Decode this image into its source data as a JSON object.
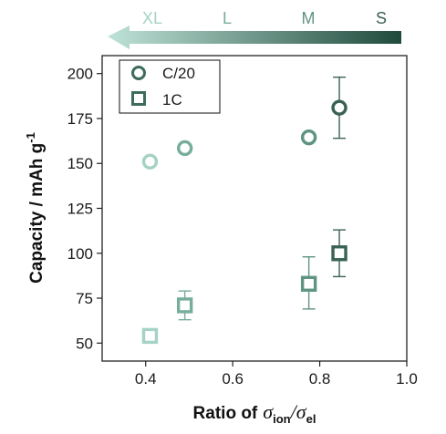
{
  "chart_data": {
    "type": "scatter",
    "xlabel": {
      "prefix": "Ratio of",
      "numerator_symbol": "σ",
      "numerator_sub": "ion",
      "slash": "/",
      "denominator_symbol": "σ",
      "denominator_sub": "el"
    },
    "ylabel": "Capacity / mAh g",
    "ylabel_superscript": "-1",
    "xlim": [
      0.3,
      1.0
    ],
    "ylim": [
      40,
      210
    ],
    "x_ticks": [
      0.4,
      0.6,
      0.8,
      1.0
    ],
    "x_tick_labels": [
      "0.4",
      "0.6",
      "0.8",
      "1.0"
    ],
    "y_ticks": [
      50,
      75,
      100,
      125,
      150,
      175,
      200
    ],
    "y_tick_labels": [
      "50",
      "75",
      "100",
      "125",
      "150",
      "175",
      "200"
    ],
    "grid": false,
    "legend_position": "top-left",
    "series": [
      {
        "name": "C/20",
        "marker": "circle",
        "color": "#3f6b5d",
        "points": [
          {
            "x": 0.41,
            "y": 151,
            "err": null,
            "color": "#a5d2c5"
          },
          {
            "x": 0.49,
            "y": 158.5,
            "err": null,
            "color": "#77ad9c"
          },
          {
            "x": 0.775,
            "y": 164.5,
            "err": null,
            "color": "#5f9483"
          },
          {
            "x": 0.845,
            "y": 181,
            "err": [
              164,
              198
            ],
            "color": "#3a6253"
          }
        ]
      },
      {
        "name": "1C",
        "marker": "square",
        "color": "#3f6b5d",
        "points": [
          {
            "x": 0.41,
            "y": 54,
            "err": null,
            "color": "#a5d2c5"
          },
          {
            "x": 0.49,
            "y": 71,
            "err": [
              63,
              79
            ],
            "color": "#77ad9c"
          },
          {
            "x": 0.775,
            "y": 83,
            "err": [
              69,
              98
            ],
            "color": "#5f9483"
          },
          {
            "x": 0.845,
            "y": 100,
            "err": [
              87,
              113
            ],
            "color": "#3a6253"
          }
        ]
      }
    ],
    "size_arrow": {
      "labels": [
        "XL",
        "L",
        "M",
        "S"
      ],
      "label_colors": [
        "#a5d2c5",
        "#77ad9c",
        "#5f9483",
        "#3a6253"
      ],
      "color_start": "#bfe3d8",
      "color_end": "#1f4a3c"
    }
  }
}
